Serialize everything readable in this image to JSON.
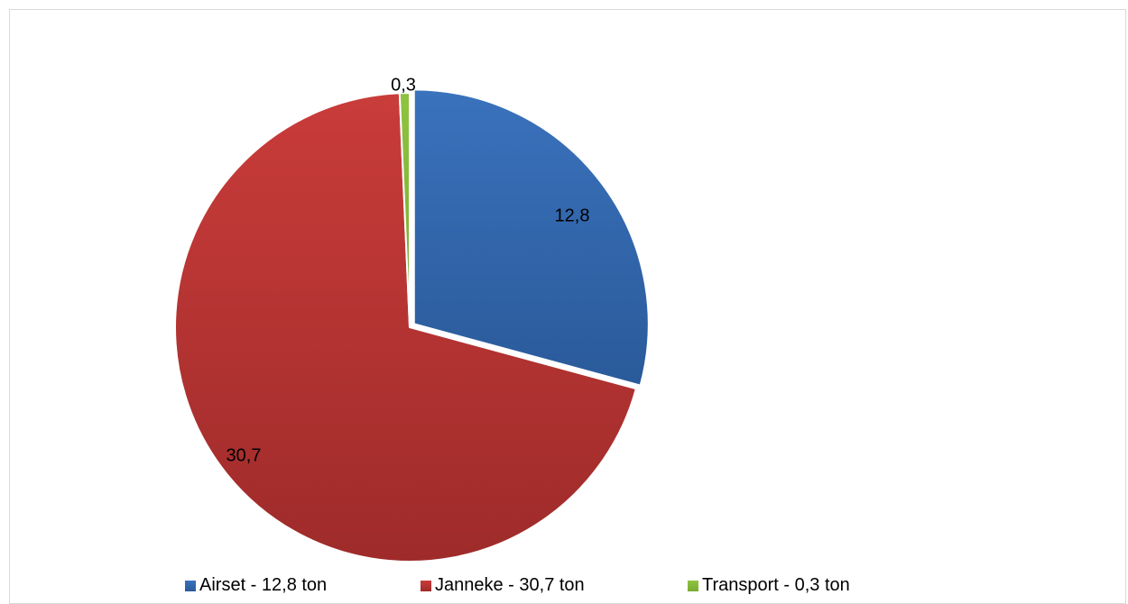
{
  "chart_data": {
    "type": "pie",
    "title": "",
    "slices": [
      {
        "label": "12,8",
        "value": 12.8,
        "legend": "Airset - 12,8 ton",
        "color": "#3a72bc",
        "color_dark": "#2a5a9a",
        "exploded": true
      },
      {
        "label": "30,7",
        "value": 30.7,
        "legend": "Janneke - 30,7 ton",
        "color": "#c93c3a",
        "color_dark": "#9e2b2a",
        "exploded": false
      },
      {
        "label": "0,3",
        "value": 0.3,
        "legend": "Transport - 0,3 ton",
        "color": "#8fc340",
        "color_dark": "#7aab33",
        "exploded": false
      }
    ],
    "legend_position": "bottom"
  }
}
